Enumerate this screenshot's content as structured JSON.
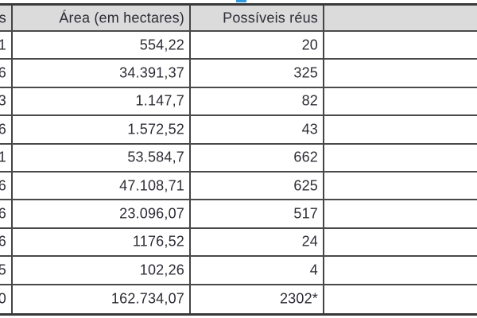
{
  "page": {
    "description": "Cropped document table",
    "colors": {
      "header_background": "#dbdbdb",
      "grid_lines": "#4a4a4a",
      "text": "#2d2d36",
      "top_fragment_blue": "#2e9be0"
    }
  },
  "table": {
    "header": {
      "left_fragment": "os",
      "area": "Área (em hectares)",
      "reus": "Possíveis réus",
      "empty": ""
    },
    "rows": [
      {
        "left_fragment": "1",
        "area": "554,22",
        "reus": "20",
        "empty": ""
      },
      {
        "left_fragment": "6",
        "area": "34.391,37",
        "reus": "325",
        "empty": ""
      },
      {
        "left_fragment": "3",
        "area": "1.147,7",
        "reus": "82",
        "empty": ""
      },
      {
        "left_fragment": "6",
        "area": "1.572,52",
        "reus": "43",
        "empty": ""
      },
      {
        "left_fragment": "1",
        "area": "53.584,7",
        "reus": "662",
        "empty": ""
      },
      {
        "left_fragment": "6",
        "area": "47.108,71",
        "reus": "625",
        "empty": ""
      },
      {
        "left_fragment": "6",
        "area": "23.096,07",
        "reus": "517",
        "empty": ""
      },
      {
        "left_fragment": "6",
        "area": "1176,52",
        "reus": "24",
        "empty": ""
      },
      {
        "left_fragment": "5",
        "area": "102,26",
        "reus": "4",
        "empty": ""
      },
      {
        "left_fragment": "0",
        "area": "162.734,07",
        "reus": "2302*",
        "empty": ""
      }
    ]
  }
}
